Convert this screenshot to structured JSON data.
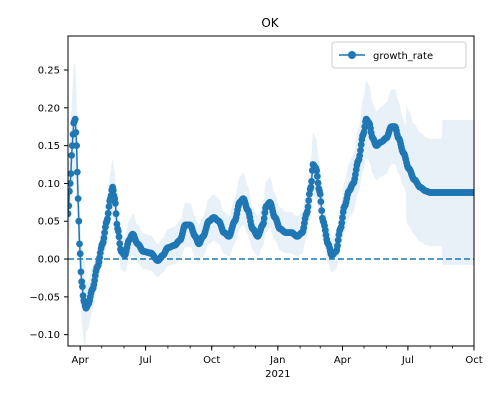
{
  "chart_data": {
    "type": "line",
    "title": "OK",
    "xlabel": "",
    "ylabel": "",
    "x_start": "2020-03-15",
    "x_end": "2021-10-01",
    "xlim": [
      "2020-03-15",
      "2021-10-01"
    ],
    "ylim": [
      -0.115,
      0.295
    ],
    "yticks": [
      -0.1,
      -0.05,
      0.0,
      0.05,
      0.1,
      0.15,
      0.2,
      0.25
    ],
    "ytick_labels": [
      "−0.10",
      "−0.05",
      "0.00",
      "0.05",
      "0.10",
      "0.15",
      "0.20",
      "0.25"
    ],
    "xticks": [
      {
        "date": "2020-04-01",
        "label": "Apr"
      },
      {
        "date": "2020-07-01",
        "label": "Jul"
      },
      {
        "date": "2020-10-01",
        "label": "Oct"
      },
      {
        "date": "2021-01-01",
        "label": "Jan"
      },
      {
        "date": "2021-04-01",
        "label": "Apr"
      },
      {
        "date": "2021-07-01",
        "label": "Jul"
      },
      {
        "date": "2021-10-01",
        "label": "Oct"
      }
    ],
    "year_label": {
      "date": "2021-01-01",
      "label": "2021"
    },
    "legend": {
      "position": "top-right",
      "entries": [
        "growth_rate"
      ]
    },
    "grid": false,
    "reference_line": {
      "y": 0,
      "style": "dashed"
    },
    "series": [
      {
        "name": "growth_rate",
        "color": "#1f77b4",
        "band_color": "#1f77b4",
        "band_opacity": 0.1,
        "marker": "circle",
        "keypoints": [
          [
            "2020-03-15",
            0.06
          ],
          [
            "2020-03-18",
            0.1
          ],
          [
            "2020-03-21",
            0.15
          ],
          [
            "2020-03-23",
            0.18
          ],
          [
            "2020-03-25",
            0.185
          ],
          [
            "2020-03-27",
            0.15
          ],
          [
            "2020-03-29",
            0.08
          ],
          [
            "2020-03-31",
            0.02
          ],
          [
            "2020-04-03",
            -0.03
          ],
          [
            "2020-04-06",
            -0.055
          ],
          [
            "2020-04-09",
            -0.065
          ],
          [
            "2020-04-12",
            -0.06
          ],
          [
            "2020-04-18",
            -0.04
          ],
          [
            "2020-04-25",
            -0.01
          ],
          [
            "2020-05-02",
            0.02
          ],
          [
            "2020-05-08",
            0.05
          ],
          [
            "2020-05-13",
            0.08
          ],
          [
            "2020-05-16",
            0.095
          ],
          [
            "2020-05-19",
            0.08
          ],
          [
            "2020-05-23",
            0.04
          ],
          [
            "2020-05-28",
            0.01
          ],
          [
            "2020-06-02",
            0.005
          ],
          [
            "2020-06-08",
            0.025
          ],
          [
            "2020-06-13",
            0.033
          ],
          [
            "2020-06-20",
            0.02
          ],
          [
            "2020-06-28",
            0.01
          ],
          [
            "2020-07-08",
            0.008
          ],
          [
            "2020-07-18",
            -0.002
          ],
          [
            "2020-07-25",
            0.005
          ],
          [
            "2020-08-01",
            0.015
          ],
          [
            "2020-08-10",
            0.018
          ],
          [
            "2020-08-18",
            0.025
          ],
          [
            "2020-08-25",
            0.045
          ],
          [
            "2020-09-01",
            0.045
          ],
          [
            "2020-09-08",
            0.03
          ],
          [
            "2020-09-13",
            0.02
          ],
          [
            "2020-09-19",
            0.03
          ],
          [
            "2020-09-27",
            0.05
          ],
          [
            "2020-10-04",
            0.055
          ],
          [
            "2020-10-11",
            0.05
          ],
          [
            "2020-10-18",
            0.035
          ],
          [
            "2020-10-25",
            0.03
          ],
          [
            "2020-11-02",
            0.05
          ],
          [
            "2020-11-09",
            0.075
          ],
          [
            "2020-11-14",
            0.08
          ],
          [
            "2020-11-20",
            0.065
          ],
          [
            "2020-11-27",
            0.04
          ],
          [
            "2020-12-04",
            0.03
          ],
          [
            "2020-12-11",
            0.045
          ],
          [
            "2020-12-16",
            0.07
          ],
          [
            "2020-12-21",
            0.075
          ],
          [
            "2020-12-28",
            0.055
          ],
          [
            "2021-01-04",
            0.04
          ],
          [
            "2021-01-12",
            0.035
          ],
          [
            "2021-01-20",
            0.035
          ],
          [
            "2021-01-28",
            0.03
          ],
          [
            "2021-02-04",
            0.035
          ],
          [
            "2021-02-10",
            0.06
          ],
          [
            "2021-02-16",
            0.095
          ],
          [
            "2021-02-19",
            0.125
          ],
          [
            "2021-02-23",
            0.12
          ],
          [
            "2021-02-28",
            0.09
          ],
          [
            "2021-03-05",
            0.05
          ],
          [
            "2021-03-12",
            0.02
          ],
          [
            "2021-03-17",
            0.005
          ],
          [
            "2021-03-23",
            0.01
          ],
          [
            "2021-03-29",
            0.04
          ],
          [
            "2021-04-04",
            0.07
          ],
          [
            "2021-04-10",
            0.09
          ],
          [
            "2021-04-16",
            0.1
          ],
          [
            "2021-04-23",
            0.13
          ],
          [
            "2021-04-30",
            0.165
          ],
          [
            "2021-05-04",
            0.185
          ],
          [
            "2021-05-08",
            0.18
          ],
          [
            "2021-05-13",
            0.16
          ],
          [
            "2021-05-18",
            0.15
          ],
          [
            "2021-05-25",
            0.155
          ],
          [
            "2021-06-01",
            0.16
          ],
          [
            "2021-06-08",
            0.175
          ],
          [
            "2021-06-13",
            0.175
          ],
          [
            "2021-06-18",
            0.16
          ],
          [
            "2021-06-25",
            0.14
          ],
          [
            "2021-07-02",
            0.12
          ],
          [
            "2021-07-10",
            0.105
          ],
          [
            "2021-07-18",
            0.095
          ],
          [
            "2021-07-26",
            0.09
          ],
          [
            "2021-08-01",
            0.088
          ]
        ]
      }
    ]
  }
}
